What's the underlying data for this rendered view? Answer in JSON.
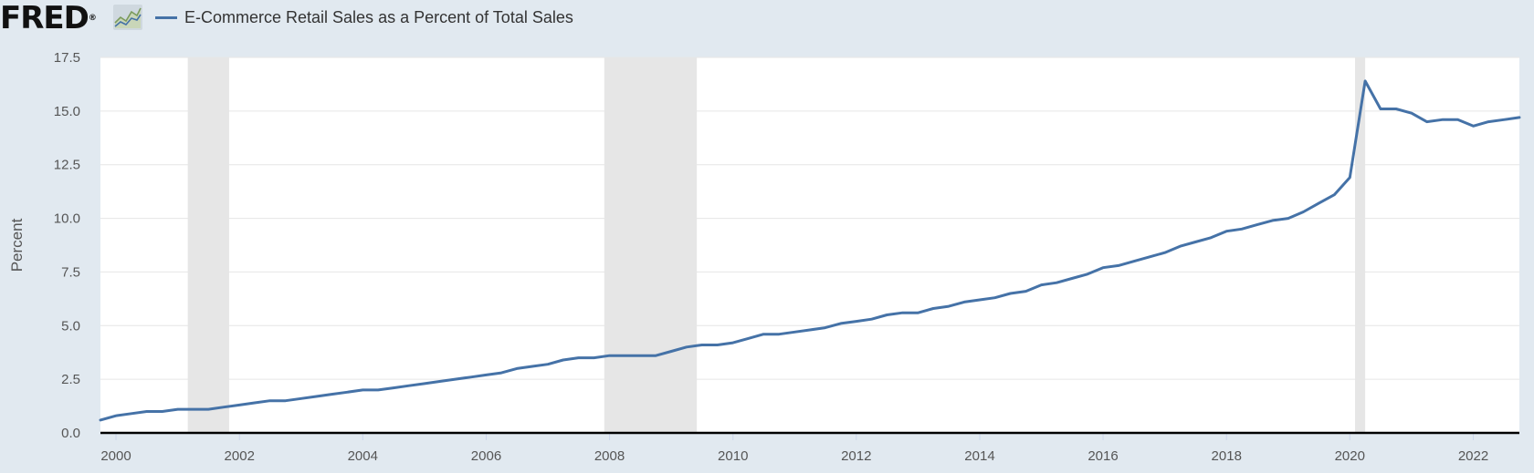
{
  "brand": {
    "logo_text": "FRED",
    "trademark": "®",
    "logo_icon": "line-graph-icon"
  },
  "colors": {
    "series": "#4572a7",
    "recession": "#e6e6e6",
    "background": "#e1e9f0",
    "plot": "#ffffff",
    "grid": "#e6e6e6"
  },
  "chart_data": {
    "type": "line",
    "title": "",
    "xlabel": "",
    "ylabel": "Percent",
    "ylim": [
      0,
      17.5
    ],
    "xlim": [
      "1999-10-01",
      "2022-10-01"
    ],
    "yticks": [
      0.0,
      2.5,
      5.0,
      7.5,
      10.0,
      12.5,
      15.0,
      17.5
    ],
    "ytick_labels": [
      "0.0",
      "2.5",
      "5.0",
      "7.5",
      "10.0",
      "12.5",
      "15.0",
      "17.5"
    ],
    "xticks": [
      "2000-01-01",
      "2002-01-01",
      "2004-01-01",
      "2006-01-01",
      "2008-01-01",
      "2010-01-01",
      "2012-01-01",
      "2014-01-01",
      "2016-01-01",
      "2018-01-01",
      "2020-01-01",
      "2022-01-01"
    ],
    "xtick_labels": [
      "2000",
      "2002",
      "2004",
      "2006",
      "2008",
      "2010",
      "2012",
      "2014",
      "2016",
      "2018",
      "2020",
      "2022"
    ],
    "grid": true,
    "legend": "top-left",
    "recessions": [
      {
        "start": "2001-03-01",
        "end": "2001-11-01"
      },
      {
        "start": "2007-12-01",
        "end": "2009-06-01"
      },
      {
        "start": "2020-02-01",
        "end": "2020-04-01"
      }
    ],
    "series": [
      {
        "name": "E-Commerce Retail Sales as a Percent of Total Sales",
        "x": [
          "1999-10-01",
          "2000-01-01",
          "2000-04-01",
          "2000-07-01",
          "2000-10-01",
          "2001-01-01",
          "2001-04-01",
          "2001-07-01",
          "2001-10-01",
          "2002-01-01",
          "2002-04-01",
          "2002-07-01",
          "2002-10-01",
          "2003-01-01",
          "2003-04-01",
          "2003-07-01",
          "2003-10-01",
          "2004-01-01",
          "2004-04-01",
          "2004-07-01",
          "2004-10-01",
          "2005-01-01",
          "2005-04-01",
          "2005-07-01",
          "2005-10-01",
          "2006-01-01",
          "2006-04-01",
          "2006-07-01",
          "2006-10-01",
          "2007-01-01",
          "2007-04-01",
          "2007-07-01",
          "2007-10-01",
          "2008-01-01",
          "2008-04-01",
          "2008-07-01",
          "2008-10-01",
          "2009-01-01",
          "2009-04-01",
          "2009-07-01",
          "2009-10-01",
          "2010-01-01",
          "2010-04-01",
          "2010-07-01",
          "2010-10-01",
          "2011-01-01",
          "2011-04-01",
          "2011-07-01",
          "2011-10-01",
          "2012-01-01",
          "2012-04-01",
          "2012-07-01",
          "2012-10-01",
          "2013-01-01",
          "2013-04-01",
          "2013-07-01",
          "2013-10-01",
          "2014-01-01",
          "2014-04-01",
          "2014-07-01",
          "2014-10-01",
          "2015-01-01",
          "2015-04-01",
          "2015-07-01",
          "2015-10-01",
          "2016-01-01",
          "2016-04-01",
          "2016-07-01",
          "2016-10-01",
          "2017-01-01",
          "2017-04-01",
          "2017-07-01",
          "2017-10-01",
          "2018-01-01",
          "2018-04-01",
          "2018-07-01",
          "2018-10-01",
          "2019-01-01",
          "2019-04-01",
          "2019-07-01",
          "2019-10-01",
          "2020-01-01",
          "2020-04-01",
          "2020-07-01",
          "2020-10-01",
          "2021-01-01",
          "2021-04-01",
          "2021-07-01",
          "2021-10-01",
          "2022-01-01",
          "2022-04-01",
          "2022-07-01",
          "2022-10-01"
        ],
        "values": [
          0.6,
          0.8,
          0.9,
          1.0,
          1.0,
          1.1,
          1.1,
          1.1,
          1.2,
          1.3,
          1.4,
          1.5,
          1.5,
          1.6,
          1.7,
          1.8,
          1.9,
          2.0,
          2.0,
          2.1,
          2.2,
          2.3,
          2.4,
          2.5,
          2.6,
          2.7,
          2.8,
          3.0,
          3.1,
          3.2,
          3.4,
          3.5,
          3.5,
          3.6,
          3.6,
          3.6,
          3.6,
          3.8,
          4.0,
          4.1,
          4.1,
          4.2,
          4.4,
          4.6,
          4.6,
          4.7,
          4.8,
          4.9,
          5.1,
          5.2,
          5.3,
          5.5,
          5.6,
          5.6,
          5.8,
          5.9,
          6.1,
          6.2,
          6.3,
          6.5,
          6.6,
          6.9,
          7.0,
          7.2,
          7.4,
          7.7,
          7.8,
          8.0,
          8.2,
          8.4,
          8.7,
          8.9,
          9.1,
          9.4,
          9.5,
          9.7,
          9.9,
          10.0,
          10.3,
          10.7,
          11.1,
          11.9,
          16.4,
          15.1,
          15.1,
          14.9,
          14.5,
          14.6,
          14.6,
          14.3,
          14.5,
          14.6,
          14.7
        ]
      }
    ]
  }
}
